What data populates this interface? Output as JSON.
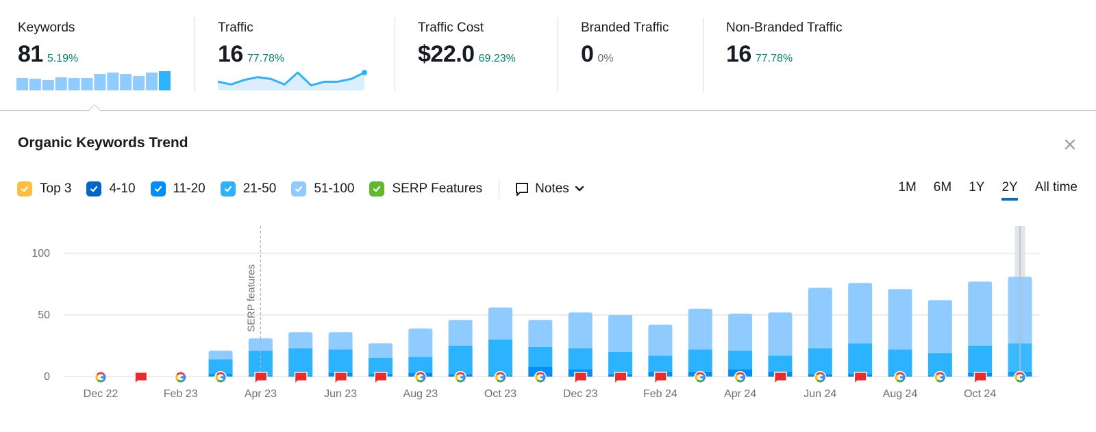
{
  "metrics": [
    {
      "label": "Keywords",
      "value": "81",
      "change": "5.19%",
      "change_tone": "positive"
    },
    {
      "label": "Traffic",
      "value": "16",
      "change": "77.78%",
      "change_tone": "positive"
    },
    {
      "label": "Traffic Cost",
      "value": "$22.0",
      "change": "69.23%",
      "change_tone": "positive"
    },
    {
      "label": "Branded Traffic",
      "value": "0",
      "change": "0%",
      "change_tone": "neutral"
    },
    {
      "label": "Non-Branded Traffic",
      "value": "16",
      "change": "77.78%",
      "change_tone": "positive"
    }
  ],
  "sparklines": {
    "keywords_bars": [
      9,
      8.5,
      7.5,
      9.5,
      9,
      9,
      12,
      13,
      12,
      10.5,
      13,
      14
    ],
    "traffic_line": [
      8,
      5,
      10,
      13,
      11,
      5,
      18,
      4,
      8,
      8,
      11,
      18
    ]
  },
  "panel": {
    "title": "Organic Keywords Trend",
    "close_icon": "close-icon"
  },
  "legend": [
    {
      "label": "Top 3",
      "color": "#ffbe3b",
      "checked": true
    },
    {
      "label": "4-10",
      "color": "#0067c8",
      "checked": true
    },
    {
      "label": "11-20",
      "color": "#008ff8",
      "checked": true
    },
    {
      "label": "21-50",
      "color": "#2bb3ff",
      "checked": true
    },
    {
      "label": "51-100",
      "color": "#8fcbff",
      "checked": true
    },
    {
      "label": "SERP Features",
      "color": "#5fbb2c",
      "checked": true
    }
  ],
  "notes": {
    "label": "Notes",
    "icon": "comment-icon"
  },
  "periods": [
    {
      "label": "1M",
      "active": false
    },
    {
      "label": "6M",
      "active": false
    },
    {
      "label": "1Y",
      "active": false
    },
    {
      "label": "2Y",
      "active": true
    },
    {
      "label": "All time",
      "active": false
    }
  ],
  "chart_data": {
    "type": "bar",
    "stacked": true,
    "title": "Organic Keywords Trend",
    "xlabel": "",
    "ylabel": "",
    "ylim": [
      0,
      125
    ],
    "yticks": [
      0,
      50,
      100
    ],
    "grid": true,
    "x": [
      "Dec 22",
      "Jan 23",
      "Feb 23",
      "Mar 23",
      "Apr 23",
      "May 23",
      "Jun 23",
      "Jul 23",
      "Aug 23",
      "Sep 23",
      "Oct 23",
      "Nov 23",
      "Dec 23",
      "Jan 24",
      "Feb 24",
      "Mar 24",
      "Apr 24",
      "May 24",
      "Jun 24",
      "Jul 24",
      "Aug 24",
      "Sep 24",
      "Oct 24",
      "Nov 24"
    ],
    "xtick_labels": [
      "Dec 22",
      "Feb 23",
      "Apr 23",
      "Jun 23",
      "Aug 23",
      "Oct 23",
      "Dec 23",
      "Feb 24",
      "Apr 24",
      "Jun 24",
      "Aug 24",
      "Oct 24"
    ],
    "series": [
      {
        "name": "Top 3",
        "color": "#ffbe3b",
        "values": [
          0,
          0,
          0,
          0,
          0,
          0,
          0,
          0,
          0,
          0,
          0,
          0,
          0,
          0,
          0,
          0,
          0,
          0,
          0,
          0,
          0,
          0,
          0,
          0
        ]
      },
      {
        "name": "4-10",
        "color": "#0067c8",
        "values": [
          0,
          0,
          0,
          0,
          0,
          0,
          0,
          0,
          1,
          1,
          0,
          1,
          1,
          1,
          0,
          0,
          0,
          1,
          1,
          1,
          0,
          0,
          0,
          0
        ]
      },
      {
        "name": "11-20",
        "color": "#008ff8",
        "values": [
          0,
          0,
          0,
          2,
          1,
          1,
          3,
          2,
          2,
          1,
          1,
          7,
          5,
          1,
          4,
          4,
          6,
          3,
          1,
          1,
          1,
          1,
          3,
          4
        ]
      },
      {
        "name": "21-50",
        "color": "#2bb3ff",
        "values": [
          0,
          0,
          0,
          12,
          20,
          22,
          19,
          13,
          13,
          23,
          29,
          16,
          17,
          18,
          13,
          18,
          15,
          13,
          21,
          25,
          21,
          18,
          22,
          23
        ]
      },
      {
        "name": "51-100",
        "color": "#8fcbff",
        "values": [
          0,
          0,
          0,
          7,
          10,
          13,
          14,
          12,
          23,
          21,
          26,
          22,
          29,
          30,
          25,
          33,
          30,
          35,
          49,
          49,
          49,
          43,
          52,
          54
        ]
      }
    ],
    "totals": [
      0,
      0,
      0,
      21,
      31,
      36,
      36,
      27,
      39,
      46,
      56,
      46,
      52,
      50,
      42,
      55,
      51,
      52,
      72,
      76,
      71,
      62,
      77,
      81
    ],
    "markers": [
      "google",
      "note",
      "google",
      "google",
      "note",
      "note",
      "note",
      "note",
      "google",
      "google",
      "google",
      "google",
      "note",
      "note",
      "note",
      "google",
      "google",
      "note",
      "google",
      "note",
      "google",
      "google",
      "note",
      "google"
    ],
    "annotations": [
      {
        "x": "Apr 23",
        "label": "SERP features",
        "style": "dashed-vertical"
      }
    ],
    "highlighted": "Nov 24"
  }
}
